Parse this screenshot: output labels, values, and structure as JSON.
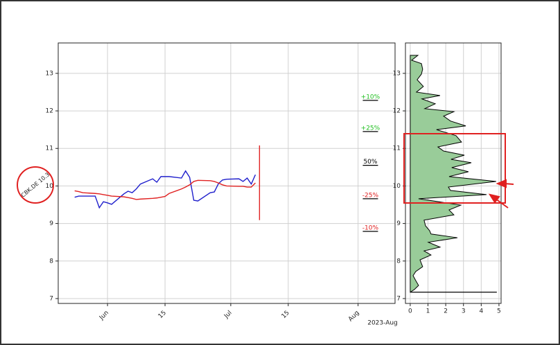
{
  "chart_data": [
    {
      "type": "line",
      "annotation": "CBK.DE 10.3",
      "x_offset_label": "2023-Aug",
      "x": [
        "2023-05-24",
        "2023-05-25",
        "2023-05-26",
        "2023-05-29",
        "2023-05-30",
        "2023-05-31",
        "2023-06-01",
        "2023-06-02",
        "2023-06-05",
        "2023-06-06",
        "2023-06-07",
        "2023-06-08",
        "2023-06-09",
        "2023-06-12",
        "2023-06-13",
        "2023-06-14",
        "2023-06-15",
        "2023-06-16",
        "2023-06-19",
        "2023-06-20",
        "2023-06-21",
        "2023-06-22",
        "2023-06-23",
        "2023-06-26",
        "2023-06-27",
        "2023-06-28",
        "2023-06-29",
        "2023-06-30",
        "2023-07-03",
        "2023-07-04",
        "2023-07-05",
        "2023-07-06",
        "2023-07-07"
      ],
      "series": [
        {
          "name": "price",
          "color": "#1f1fcc",
          "values": [
            9.7,
            9.73,
            9.73,
            9.73,
            9.42,
            9.58,
            9.55,
            9.51,
            9.79,
            9.86,
            9.82,
            9.92,
            10.05,
            10.19,
            10.1,
            10.25,
            10.25,
            10.25,
            10.21,
            10.4,
            10.23,
            9.62,
            9.6,
            9.82,
            9.84,
            10.06,
            10.16,
            10.18,
            10.19,
            10.12,
            10.21,
            10.05,
            10.3
          ]
        },
        {
          "name": "average",
          "color": "#e02020",
          "values": [
            9.87,
            9.85,
            9.82,
            9.8,
            9.79,
            9.77,
            9.75,
            9.73,
            9.71,
            9.69,
            9.67,
            9.64,
            9.65,
            9.67,
            9.68,
            9.7,
            9.72,
            9.8,
            9.92,
            9.97,
            10.03,
            10.12,
            10.15,
            10.14,
            10.12,
            10.08,
            10.03,
            10.0,
            9.99,
            9.99,
            9.97,
            9.97,
            10.08
          ]
        }
      ],
      "vline": {
        "x": "2023-07-08",
        "ymin": 9.09,
        "ymax": 11.08,
        "color": "#e02020"
      },
      "levels": [
        {
          "label": "+10%",
          "value": 12.28,
          "color": "#22c022"
        },
        {
          "label": "+25%",
          "value": 11.45,
          "color": "#22c022"
        },
        {
          "label": "50%",
          "value": 10.55,
          "color": "#000000"
        },
        {
          "label": "-25%",
          "value": 9.66,
          "color": "#e02020"
        },
        {
          "label": "-10%",
          "value": 8.79,
          "color": "#e02020"
        }
      ],
      "level_x": "2023-08-04",
      "xlim": [
        "2023-05-20",
        "2023-08-10"
      ],
      "xticks": [
        {
          "value": "2023-06-01",
          "label": "Jun"
        },
        {
          "value": "2023-06-15",
          "label": "15"
        },
        {
          "value": "2023-07-01",
          "label": "Jul"
        },
        {
          "value": "2023-07-15",
          "label": "15"
        },
        {
          "value": "2023-08-01",
          "label": "Aug"
        }
      ],
      "ylim": [
        6.87,
        13.81
      ],
      "yticks": [
        7,
        8,
        9,
        10,
        11,
        12,
        13
      ],
      "grid": true
    },
    {
      "type": "profile",
      "color": "#99cc99",
      "prices": [
        13.48,
        13.35,
        13.26,
        13.11,
        12.98,
        12.83,
        12.65,
        12.5,
        12.41,
        12.32,
        12.19,
        12.06,
        11.98,
        11.86,
        11.73,
        11.6,
        11.5,
        11.34,
        11.17,
        11.04,
        10.93,
        10.82,
        10.71,
        10.62,
        10.49,
        10.38,
        10.25,
        10.12,
        9.97,
        9.88,
        9.77,
        9.66,
        9.49,
        9.36,
        9.23,
        9.09,
        8.94,
        8.81,
        8.72,
        8.62,
        8.5,
        8.37,
        8.27,
        8.16,
        8.03,
        7.85,
        7.72,
        7.61,
        7.48,
        7.35,
        7.24,
        7.17
      ],
      "counts": [
        0.43,
        0.08,
        0.63,
        0.7,
        0.63,
        0.39,
        0.74,
        0.35,
        1.68,
        0.66,
        1.41,
        0.82,
        2.46,
        1.88,
        2.27,
        3.13,
        1.48,
        2.58,
        2.89,
        1.56,
        1.88,
        3.05,
        2.3,
        3.44,
        2.34,
        3.28,
        2.19,
        4.84,
        2.15,
        2.27,
        4.3,
        0.47,
        2.85,
        2.19,
        2.46,
        0.78,
        0.86,
        1.09,
        1.17,
        2.66,
        1.02,
        1.68,
        0.78,
        1.17,
        0.55,
        0.7,
        0.31,
        0.16,
        0.31,
        0.47,
        0.23,
        0
      ],
      "baseline": {
        "y": 7.17,
        "xmax": 4.88
      },
      "xlim": [
        -0.27,
        5.12
      ],
      "xticks": [
        0,
        1,
        2,
        3,
        4,
        5
      ],
      "ylim": [
        6.87,
        13.81
      ],
      "yticks": [
        7,
        8,
        9,
        10,
        11,
        12,
        13
      ],
      "grid": true
    }
  ]
}
